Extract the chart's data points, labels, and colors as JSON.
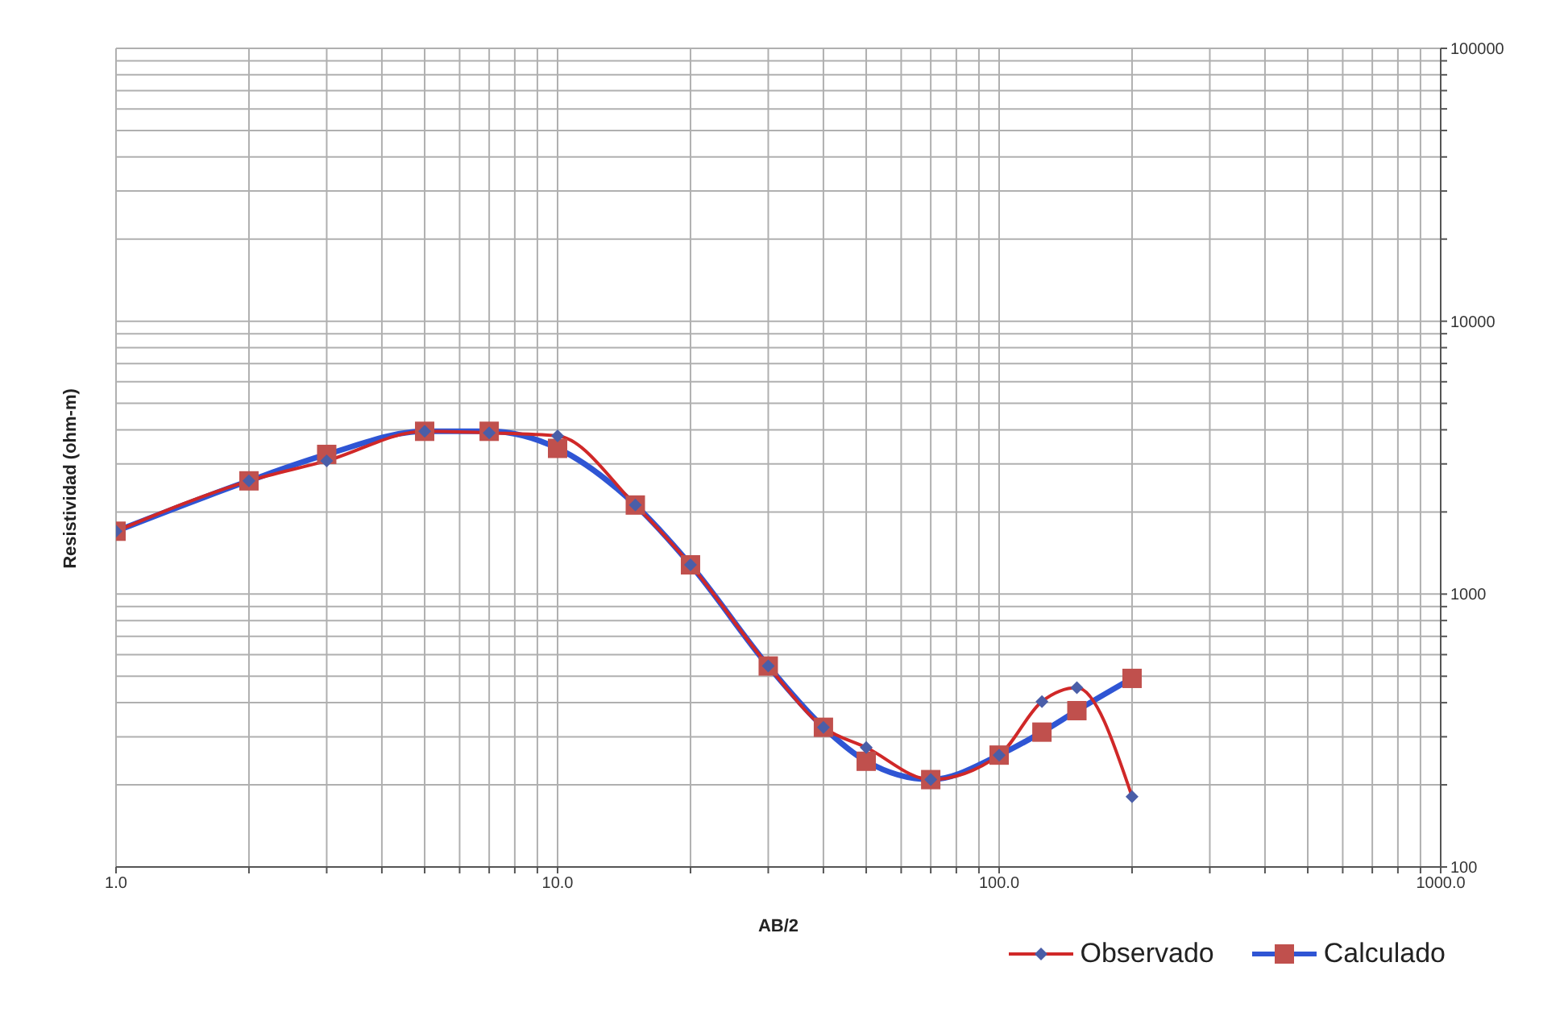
{
  "chart_data": {
    "type": "line",
    "xlabel": "AB/2",
    "ylabel": "Resistividad (ohm-m)",
    "log": "xy",
    "grid": true,
    "legend": "bottom right",
    "line_style": "solid",
    "xlim": [
      1,
      1000
    ],
    "ylim": [
      100,
      100000
    ],
    "xticks": [
      {
        "value": 1,
        "label": "1.0"
      },
      {
        "value": 2,
        "label": null
      },
      {
        "value": 3,
        "label": null
      },
      {
        "value": 4,
        "label": null
      },
      {
        "value": 5,
        "label": null
      },
      {
        "value": 6,
        "label": null
      },
      {
        "value": 7,
        "label": null
      },
      {
        "value": 8,
        "label": null
      },
      {
        "value": 9,
        "label": null
      },
      {
        "value": 10,
        "label": "10.0"
      },
      {
        "value": 20,
        "label": null
      },
      {
        "value": 30,
        "label": null
      },
      {
        "value": 40,
        "label": null
      },
      {
        "value": 50,
        "label": null
      },
      {
        "value": 60,
        "label": null
      },
      {
        "value": 70,
        "label": null
      },
      {
        "value": 80,
        "label": null
      },
      {
        "value": 90,
        "label": null
      },
      {
        "value": 100,
        "label": "100.0"
      },
      {
        "value": 200,
        "label": null
      },
      {
        "value": 300,
        "label": null
      },
      {
        "value": 400,
        "label": null
      },
      {
        "value": 500,
        "label": null
      },
      {
        "value": 600,
        "label": null
      },
      {
        "value": 700,
        "label": null
      },
      {
        "value": 800,
        "label": null
      },
      {
        "value": 900,
        "label": null
      },
      {
        "value": 1000,
        "label": "1000.0"
      }
    ],
    "yticks": [
      100,
      {
        "value": 200,
        "label": null
      },
      {
        "value": 300,
        "label": null
      },
      {
        "value": 400,
        "label": null
      },
      {
        "value": 500,
        "label": null
      },
      {
        "value": 600,
        "label": null
      },
      {
        "value": 700,
        "label": null
      },
      {
        "value": 800,
        "label": null
      },
      {
        "value": 900,
        "label": null
      },
      1000,
      {
        "value": 2000,
        "label": null
      },
      {
        "value": 3000,
        "label": null
      },
      {
        "value": 4000,
        "label": null
      },
      {
        "value": 5000,
        "label": null
      },
      {
        "value": 6000,
        "label": null
      },
      {
        "value": 7000,
        "label": null
      },
      {
        "value": 8000,
        "label": null
      },
      {
        "value": 9000,
        "label": null
      },
      10000,
      {
        "value": 20000,
        "label": null
      },
      {
        "value": 30000,
        "label": null
      },
      {
        "value": 40000,
        "label": null
      },
      {
        "value": 50000,
        "label": null
      },
      {
        "value": 60000,
        "label": null
      },
      {
        "value": 70000,
        "label": null
      },
      {
        "value": 80000,
        "label": null
      },
      {
        "value": 90000,
        "label": null
      },
      100000
    ],
    "x": [
      1,
      2,
      3,
      5,
      7,
      10,
      15,
      20,
      30,
      40,
      50,
      70,
      100,
      125,
      150,
      200
    ],
    "series": [
      {
        "name": "Observado",
        "color": "#d02828",
        "marker": "diamond",
        "colors": [
          "#4a5ea8",
          "#4a5ea8",
          "#4a5ea8",
          "#4a5ea8",
          "#4a5ea8",
          "#4a5ea8",
          "#4a5ea8",
          "#4a5ea8",
          "#4a5ea8",
          "#4a5ea8",
          "#4a5ea8",
          "#4a5ea8",
          "#4a5ea8",
          "#4a5ea8",
          "#4a5ea8",
          "#4a5ea8"
        ],
        "values": [
          1700,
          2600,
          3080,
          3950,
          3900,
          3800,
          2120,
          1280,
          545,
          325,
          274,
          209,
          257,
          404,
          454,
          181
        ]
      },
      {
        "name": "Calculado",
        "color": "#2f55d4",
        "marker": "square",
        "colors": [
          "#c0504d",
          "#c0504d",
          "#c0504d",
          "#c0504d",
          "#c0504d",
          "#c0504d",
          "#c0504d",
          "#c0504d",
          "#c0504d",
          "#c0504d",
          "#c0504d",
          "#c0504d",
          "#c0504d",
          "#c0504d",
          "#c0504d",
          "#c0504d"
        ],
        "values": [
          1700,
          2600,
          3250,
          3950,
          3950,
          3420,
          2120,
          1280,
          545,
          325,
          244,
          209,
          257,
          312,
          374,
          491
        ]
      }
    ]
  }
}
